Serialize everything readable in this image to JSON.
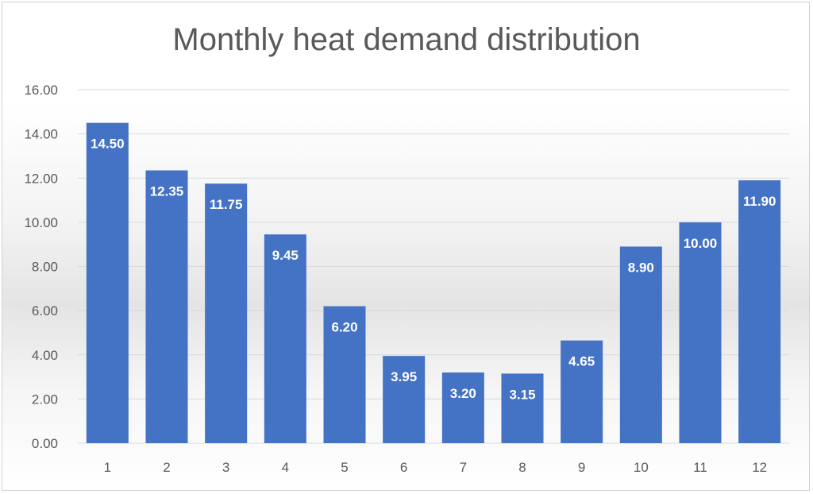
{
  "chart_data": {
    "type": "bar",
    "title": "Monthly heat demand distribution",
    "categories": [
      "1",
      "2",
      "3",
      "4",
      "5",
      "6",
      "7",
      "8",
      "9",
      "10",
      "11",
      "12"
    ],
    "values": [
      14.5,
      12.35,
      11.75,
      9.45,
      6.2,
      3.95,
      3.2,
      3.15,
      4.65,
      8.9,
      10.0,
      11.9
    ],
    "data_labels": [
      "14.50",
      "12.35",
      "11.75",
      "9.45",
      "6.20",
      "3.95",
      "3.20",
      "3.15",
      "4.65",
      "8.90",
      "10.00",
      "11.90"
    ],
    "yticks": [
      "0.00",
      "2.00",
      "4.00",
      "6.00",
      "8.00",
      "10.00",
      "12.00",
      "14.00",
      "16.00"
    ],
    "ylim": [
      0,
      16
    ],
    "grid": true,
    "legend": "none",
    "bar_color": "#4472c4"
  }
}
